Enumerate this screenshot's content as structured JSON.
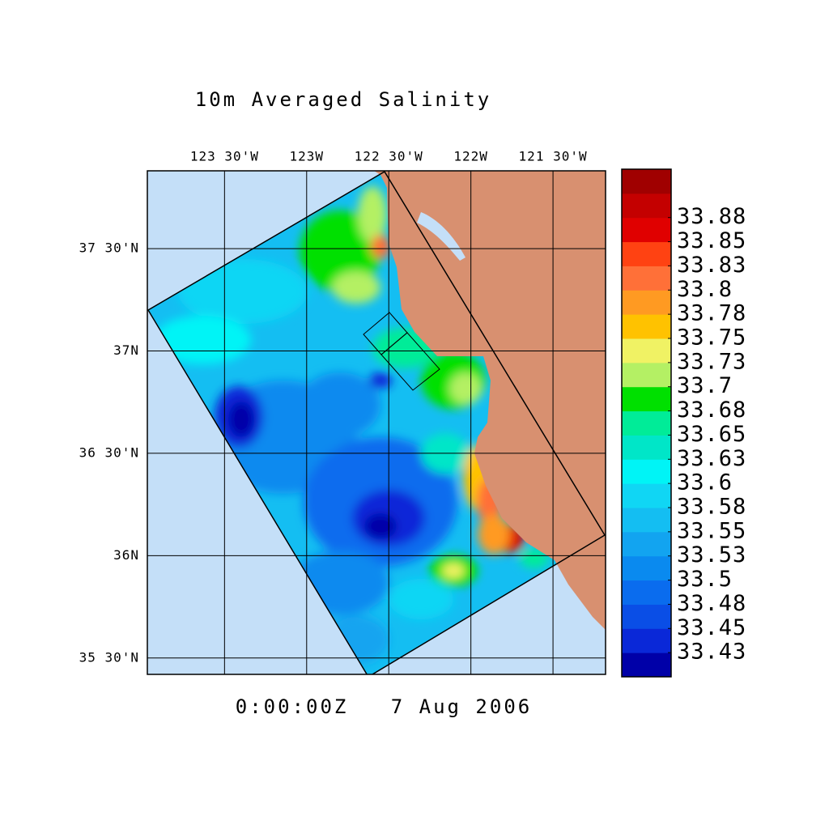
{
  "chart_data": {
    "type": "map",
    "title": "10m Averaged Salinity",
    "timestamp": "0:00:00Z   7 Aug 2006",
    "xlim": [
      -123.97,
      -121.18
    ],
    "ylim": [
      35.42,
      37.88
    ],
    "xticks": [
      {
        "value": -123.5,
        "label": "123 30'W"
      },
      {
        "value": -123,
        "label": "123W"
      },
      {
        "value": -122.5,
        "label": "122 30'W"
      },
      {
        "value": -122,
        "label": "122W"
      },
      {
        "value": -121.5,
        "label": "121 30'W"
      }
    ],
    "yticks": [
      {
        "value": 37.5,
        "label": "37 30'N"
      },
      {
        "value": 37,
        "label": "37N"
      },
      {
        "value": 36.5,
        "label": "36 30'N"
      },
      {
        "value": 36,
        "label": "36N"
      },
      {
        "value": 35.5,
        "label": "35 30'N"
      }
    ],
    "grid": true,
    "colorbar": {
      "levels": [
        33.43,
        33.45,
        33.48,
        33.5,
        33.53,
        33.55,
        33.58,
        33.6,
        33.63,
        33.65,
        33.68,
        33.7,
        33.73,
        33.75,
        33.78,
        33.8,
        33.83,
        33.85,
        33.88
      ],
      "colors": [
        "#0000a8",
        "#0a28d8",
        "#0a4ee6",
        "#0a6cee",
        "#0a8aef",
        "#12a4f0",
        "#14bef2",
        "#10d6f4",
        "#00f4f6",
        "#00e6c8",
        "#00ec98",
        "#00e000",
        "#b4f064",
        "#f0f264",
        "#ffc200",
        "#ff9a22",
        "#ff7038",
        "#ff4212",
        "#e00000",
        "#c40000",
        "#a00000"
      ]
    }
  }
}
